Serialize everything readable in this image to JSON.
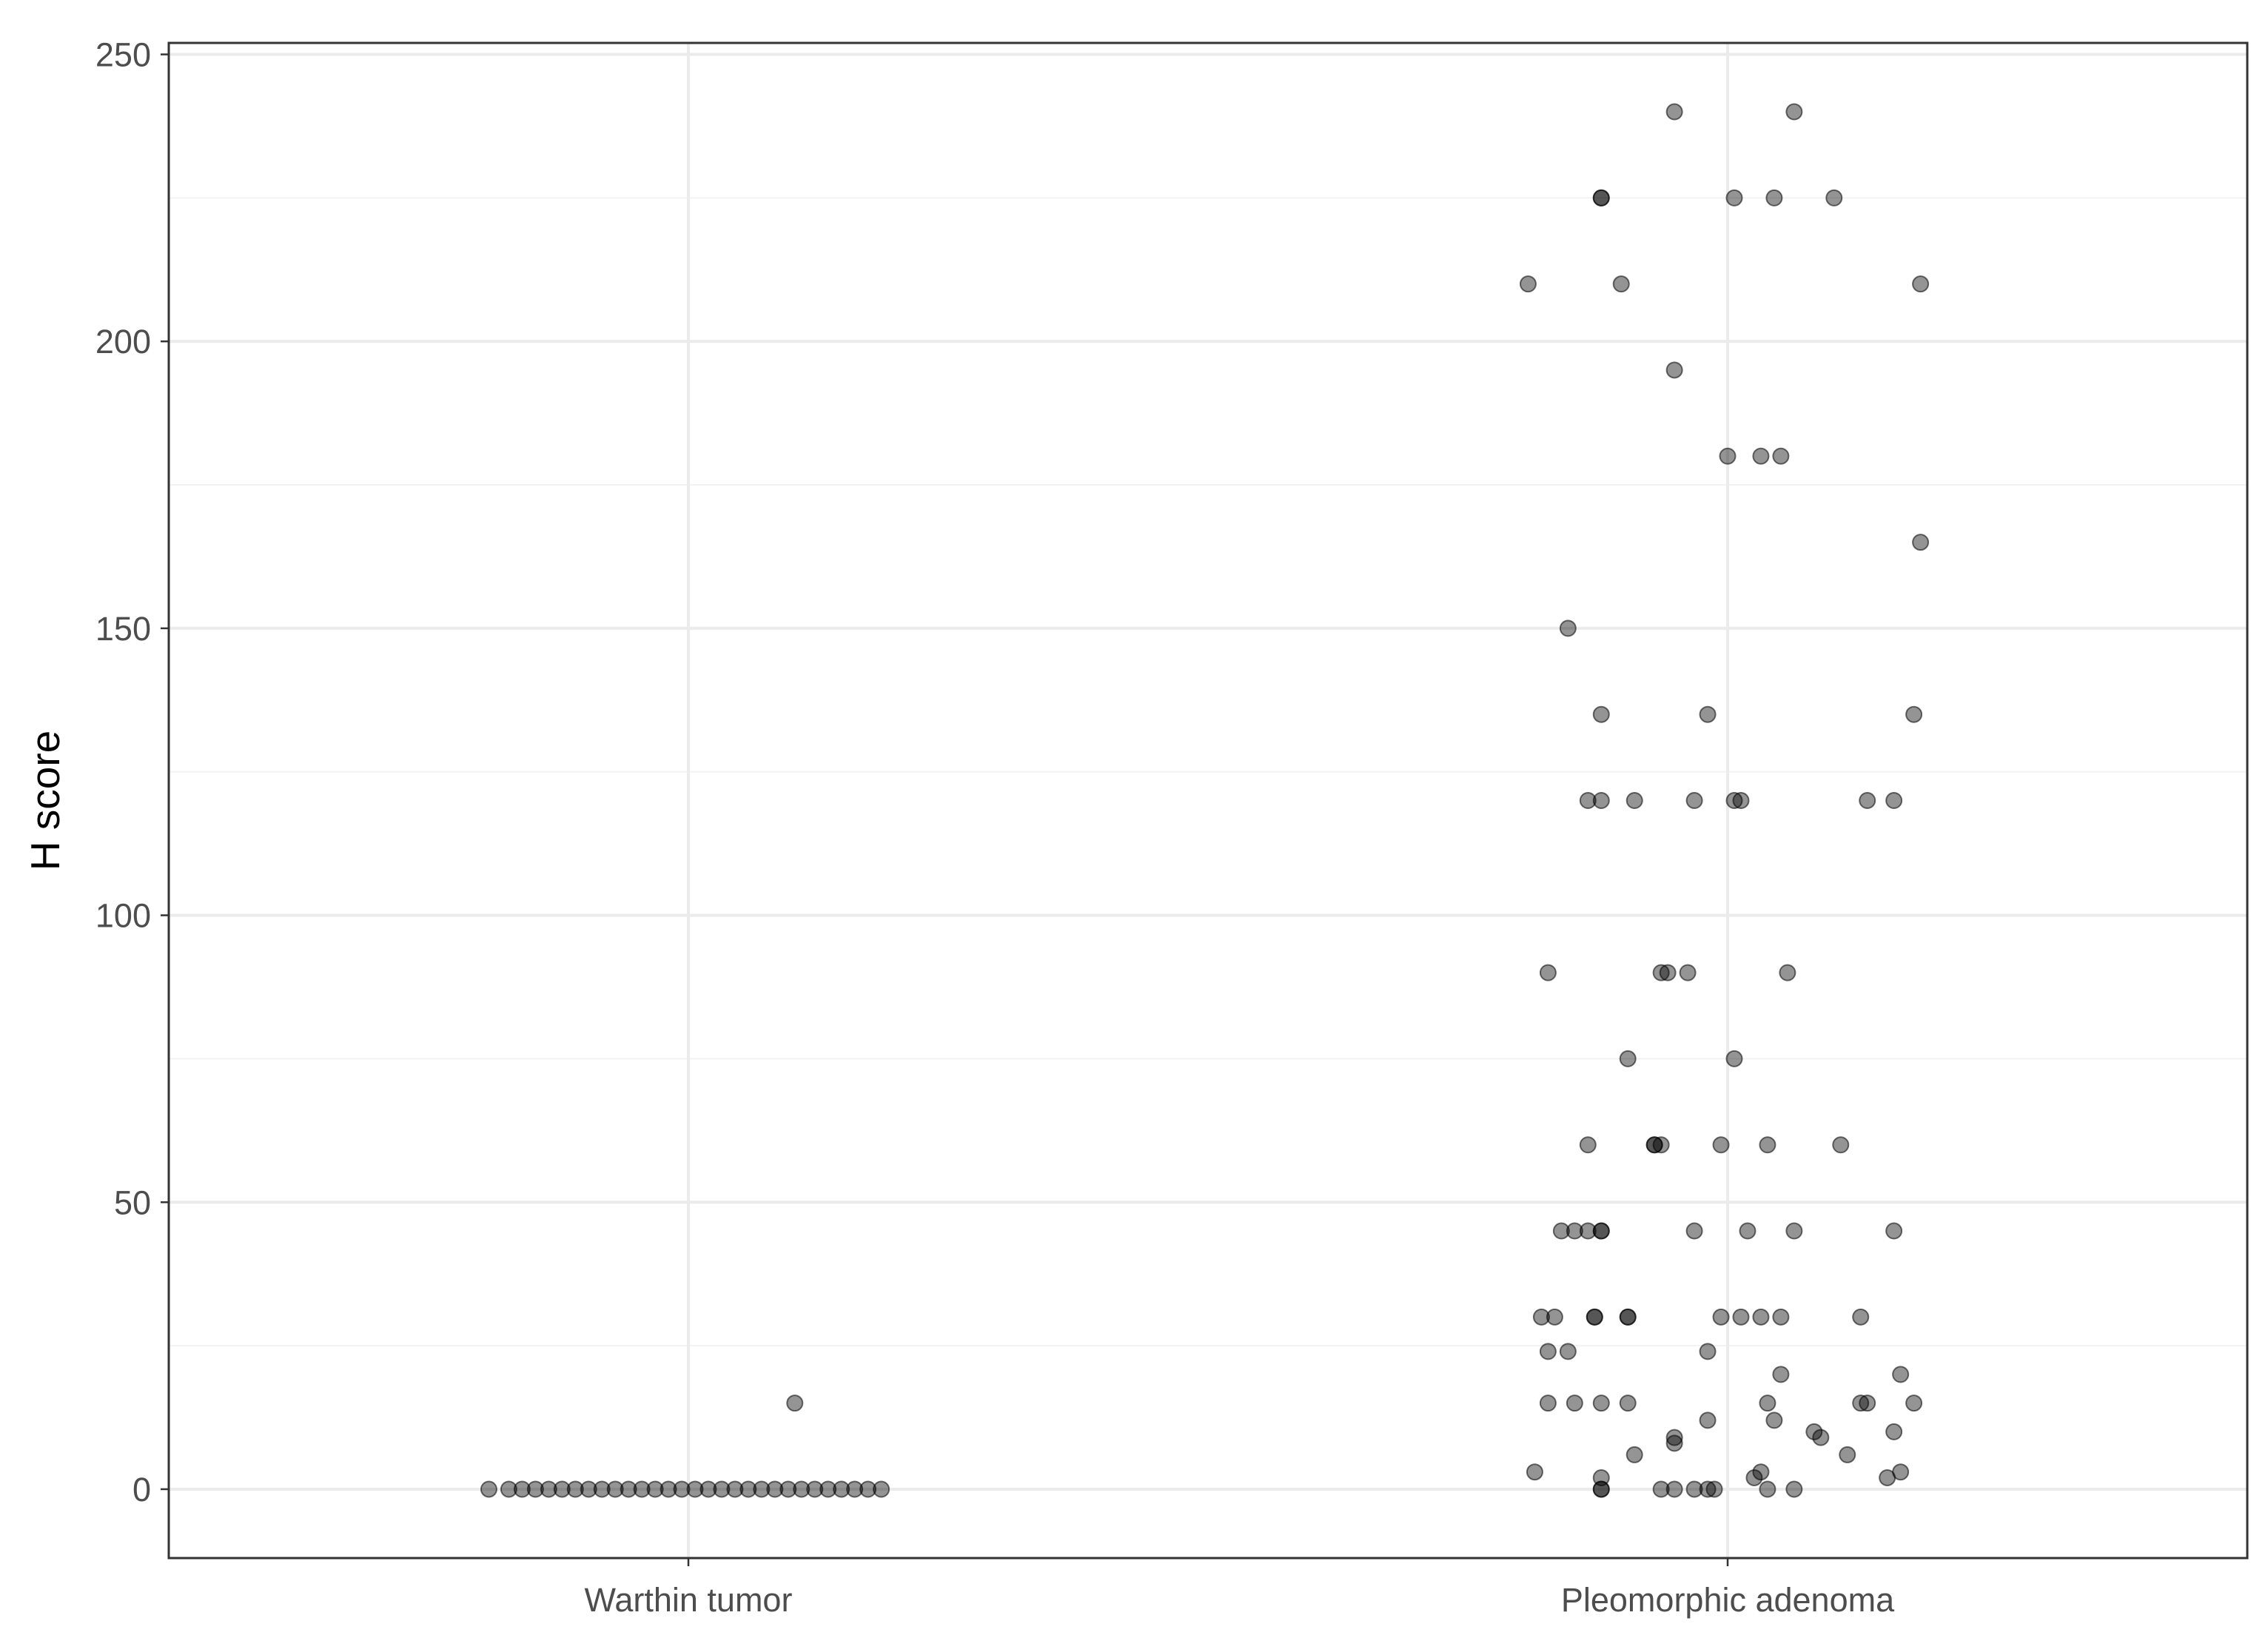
{
  "chart_data": {
    "type": "scatter",
    "title": "",
    "xlabel": "",
    "ylabel": "H score",
    "categories": [
      "Warthin tumor",
      "Pleomorphic adenoma"
    ],
    "ylim": [
      -12,
      250
    ],
    "yticks": [
      0,
      50,
      100,
      150,
      200,
      250
    ],
    "grid": true,
    "legend": "none",
    "point_color": "#000000",
    "point_alpha": 0.42,
    "series": [
      {
        "category": "Warthin tumor",
        "points": [
          {
            "j": -0.3,
            "y": 0
          },
          {
            "j": -0.27,
            "y": 0
          },
          {
            "j": -0.25,
            "y": 0
          },
          {
            "j": -0.23,
            "y": 0
          },
          {
            "j": -0.21,
            "y": 0
          },
          {
            "j": -0.19,
            "y": 0
          },
          {
            "j": -0.17,
            "y": 0
          },
          {
            "j": -0.15,
            "y": 0
          },
          {
            "j": -0.13,
            "y": 0
          },
          {
            "j": -0.11,
            "y": 0
          },
          {
            "j": -0.09,
            "y": 0
          },
          {
            "j": -0.07,
            "y": 0
          },
          {
            "j": -0.05,
            "y": 0
          },
          {
            "j": -0.03,
            "y": 0
          },
          {
            "j": -0.01,
            "y": 0
          },
          {
            "j": 0.01,
            "y": 0
          },
          {
            "j": 0.03,
            "y": 0
          },
          {
            "j": 0.05,
            "y": 0
          },
          {
            "j": 0.07,
            "y": 0
          },
          {
            "j": 0.09,
            "y": 0
          },
          {
            "j": 0.11,
            "y": 0
          },
          {
            "j": 0.13,
            "y": 0
          },
          {
            "j": 0.15,
            "y": 0
          },
          {
            "j": 0.17,
            "y": 0
          },
          {
            "j": 0.19,
            "y": 0
          },
          {
            "j": 0.21,
            "y": 0
          },
          {
            "j": 0.23,
            "y": 0
          },
          {
            "j": 0.25,
            "y": 0
          },
          {
            "j": 0.27,
            "y": 0
          },
          {
            "j": 0.29,
            "y": 0
          },
          {
            "j": 0.16,
            "y": 15
          }
        ]
      },
      {
        "category": "Pleomorphic adenoma",
        "points": [
          {
            "j": -0.08,
            "y": 240
          },
          {
            "j": 0.1,
            "y": 240
          },
          {
            "j": -0.19,
            "y": 225
          },
          {
            "j": -0.19,
            "y": 225
          },
          {
            "j": 0.01,
            "y": 225
          },
          {
            "j": 0.07,
            "y": 225
          },
          {
            "j": 0.16,
            "y": 225
          },
          {
            "j": -0.3,
            "y": 210
          },
          {
            "j": -0.16,
            "y": 210
          },
          {
            "j": 0.29,
            "y": 210
          },
          {
            "j": -0.08,
            "y": 195
          },
          {
            "j": 0.0,
            "y": 180
          },
          {
            "j": 0.05,
            "y": 180
          },
          {
            "j": 0.08,
            "y": 180
          },
          {
            "j": 0.29,
            "y": 165
          },
          {
            "j": -0.24,
            "y": 150
          },
          {
            "j": -0.19,
            "y": 135
          },
          {
            "j": -0.03,
            "y": 135
          },
          {
            "j": 0.28,
            "y": 135
          },
          {
            "j": -0.21,
            "y": 120
          },
          {
            "j": -0.19,
            "y": 120
          },
          {
            "j": -0.14,
            "y": 120
          },
          {
            "j": -0.05,
            "y": 120
          },
          {
            "j": 0.01,
            "y": 120
          },
          {
            "j": 0.02,
            "y": 120
          },
          {
            "j": 0.21,
            "y": 120
          },
          {
            "j": 0.25,
            "y": 120
          },
          {
            "j": -0.27,
            "y": 90
          },
          {
            "j": -0.1,
            "y": 90
          },
          {
            "j": -0.09,
            "y": 90
          },
          {
            "j": -0.06,
            "y": 90
          },
          {
            "j": 0.09,
            "y": 90
          },
          {
            "j": -0.15,
            "y": 75
          },
          {
            "j": 0.01,
            "y": 75
          },
          {
            "j": -0.21,
            "y": 60
          },
          {
            "j": -0.11,
            "y": 60
          },
          {
            "j": -0.11,
            "y": 60
          },
          {
            "j": -0.1,
            "y": 60
          },
          {
            "j": -0.01,
            "y": 60
          },
          {
            "j": 0.06,
            "y": 60
          },
          {
            "j": 0.17,
            "y": 60
          },
          {
            "j": -0.25,
            "y": 45
          },
          {
            "j": -0.23,
            "y": 45
          },
          {
            "j": -0.21,
            "y": 45
          },
          {
            "j": -0.19,
            "y": 45
          },
          {
            "j": -0.19,
            "y": 45
          },
          {
            "j": -0.05,
            "y": 45
          },
          {
            "j": 0.03,
            "y": 45
          },
          {
            "j": 0.1,
            "y": 45
          },
          {
            "j": 0.25,
            "y": 45
          },
          {
            "j": -0.28,
            "y": 30
          },
          {
            "j": -0.26,
            "y": 30
          },
          {
            "j": -0.2,
            "y": 30
          },
          {
            "j": -0.2,
            "y": 30
          },
          {
            "j": -0.15,
            "y": 30
          },
          {
            "j": -0.15,
            "y": 30
          },
          {
            "j": -0.01,
            "y": 30
          },
          {
            "j": 0.02,
            "y": 30
          },
          {
            "j": 0.05,
            "y": 30
          },
          {
            "j": 0.08,
            "y": 30
          },
          {
            "j": 0.2,
            "y": 30
          },
          {
            "j": -0.27,
            "y": 24
          },
          {
            "j": -0.24,
            "y": 24
          },
          {
            "j": -0.03,
            "y": 24
          },
          {
            "j": 0.08,
            "y": 20
          },
          {
            "j": 0.26,
            "y": 20
          },
          {
            "j": -0.27,
            "y": 15
          },
          {
            "j": -0.23,
            "y": 15
          },
          {
            "j": -0.19,
            "y": 15
          },
          {
            "j": -0.15,
            "y": 15
          },
          {
            "j": 0.06,
            "y": 15
          },
          {
            "j": 0.2,
            "y": 15
          },
          {
            "j": 0.21,
            "y": 15
          },
          {
            "j": 0.28,
            "y": 15
          },
          {
            "j": -0.03,
            "y": 12
          },
          {
            "j": 0.07,
            "y": 12
          },
          {
            "j": 0.25,
            "y": 10
          },
          {
            "j": 0.13,
            "y": 10
          },
          {
            "j": -0.08,
            "y": 9
          },
          {
            "j": 0.14,
            "y": 9
          },
          {
            "j": -0.08,
            "y": 8
          },
          {
            "j": -0.14,
            "y": 6
          },
          {
            "j": 0.18,
            "y": 6
          },
          {
            "j": -0.29,
            "y": 3
          },
          {
            "j": 0.05,
            "y": 3
          },
          {
            "j": 0.26,
            "y": 3
          },
          {
            "j": -0.19,
            "y": 2
          },
          {
            "j": 0.04,
            "y": 2
          },
          {
            "j": 0.24,
            "y": 2
          },
          {
            "j": -0.19,
            "y": 0
          },
          {
            "j": -0.19,
            "y": 0
          },
          {
            "j": -0.1,
            "y": 0
          },
          {
            "j": -0.08,
            "y": 0
          },
          {
            "j": -0.05,
            "y": 0
          },
          {
            "j": -0.03,
            "y": 0
          },
          {
            "j": -0.02,
            "y": 0
          },
          {
            "j": 0.06,
            "y": 0
          },
          {
            "j": 0.1,
            "y": 0
          }
        ]
      }
    ]
  }
}
